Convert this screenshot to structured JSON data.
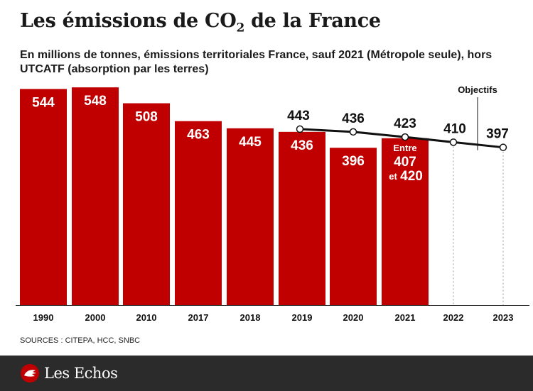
{
  "title_prefix": "Les émissions de CO",
  "title_sub": "2",
  "title_suffix": " de la France",
  "subtitle": "En millions de tonnes, émissions territoriales France, sauf 2021 (Métropole seule), hors UTCATF (absorption par les terres)",
  "sources": "SOURCES : CITEPA, HCC, SNBC",
  "brand": "Les Echos",
  "colors": {
    "bar": "#c00000",
    "line": "#111111",
    "dashed": "#999999",
    "footer": "#2b2b2b"
  },
  "chart_data": {
    "type": "bar",
    "categories": [
      "1990",
      "2000",
      "2010",
      "2017",
      "2018",
      "2019",
      "2020",
      "2021",
      "2022",
      "2023"
    ],
    "series": [
      {
        "values": [
          544,
          548,
          508,
          463,
          445,
          436,
          396,
          420,
          null,
          null
        ]
      },
      {
        "values": [
          null,
          null,
          null,
          null,
          null,
          443,
          436,
          423,
          410,
          397
        ]
      }
    ],
    "bar_labels": [
      "544",
      "548",
      "508",
      "463",
      "445",
      "436",
      "396",
      "",
      "",
      ""
    ],
    "bar_2021_range": {
      "low": 407,
      "high": 420,
      "label_top": "Entre",
      "label_low": "407",
      "label_et": "et",
      "label_high": "420"
    },
    "target_labels": [
      "443",
      "436",
      "423",
      "410",
      "397"
    ],
    "annotation": "Objectifs",
    "ylim": [
      0,
      560
    ],
    "grid": false,
    "legend": "none"
  }
}
